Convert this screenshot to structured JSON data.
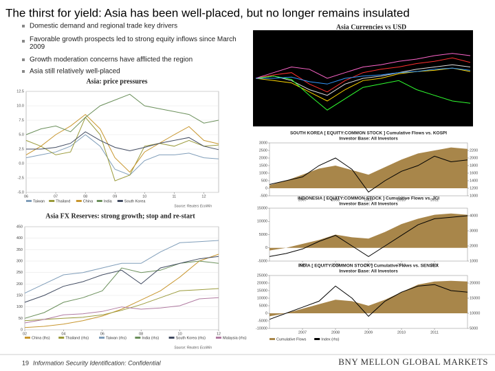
{
  "title": "The thirst for yield: Asia has been well-placed, but no longer remains insulated",
  "bullets": [
    "Domestic demand and regional trade key drivers",
    "Favorable growth prospects led to strong equity inflows since March 2009",
    "Growth moderation concerns have afflicted the region",
    "Asia still relatively well-placed"
  ],
  "chart_data": [
    {
      "type": "line",
      "title": "Asia: price pressures",
      "source": "Source: Reuters EcoWin",
      "grid": true,
      "legend": true,
      "x": [
        2006,
        2006.5,
        2007,
        2007.5,
        2008,
        2008.5,
        2009,
        2009.5,
        2010,
        2010.5,
        2011,
        2011.5,
        2012,
        2012.5
      ],
      "xlim": [
        2006,
        2012.5
      ],
      "xticks": [
        {
          "value": 2006,
          "label": "06"
        },
        {
          "value": 2007,
          "label": "07"
        },
        {
          "value": 2008,
          "label": "08"
        },
        {
          "value": 2009,
          "label": "09"
        },
        {
          "value": 2010,
          "label": "10"
        },
        {
          "value": 2011,
          "label": "11"
        },
        {
          "value": 2012,
          "label": "12"
        }
      ],
      "ylim": [
        -5,
        12.5
      ],
      "yticks": [
        {
          "value": -5,
          "label": "-5.0"
        },
        {
          "value": -2.5,
          "label": "-2.5"
        },
        {
          "value": 0,
          "label": "0.0"
        },
        {
          "value": 2.5,
          "label": "2.5"
        },
        {
          "value": 5,
          "label": "5.0"
        },
        {
          "value": 7.5,
          "label": "7.5"
        },
        {
          "value": 10,
          "label": "10.0"
        },
        {
          "value": 12.5,
          "label": "12.5"
        }
      ],
      "series": [
        {
          "name": "Taiwan",
          "color": "#7f9db9",
          "values": [
            1,
            1.5,
            2,
            3,
            5,
            3,
            -1,
            -2,
            0.5,
            1.5,
            1.5,
            1.8,
            1,
            0.8
          ]
        },
        {
          "name": "Thailand",
          "color": "#9a9a3a",
          "values": [
            4,
            3,
            1.5,
            2,
            8,
            5,
            -3,
            -2,
            3,
            3.5,
            3,
            4,
            3,
            3.2
          ]
        },
        {
          "name": "China",
          "color": "#c8962e",
          "values": [
            1.5,
            3,
            5,
            6.5,
            8.5,
            6,
            1,
            -1.5,
            2,
            3.5,
            5,
            6.4,
            4,
            3.4
          ]
        },
        {
          "name": "India",
          "color": "#6a8f5a",
          "values": [
            5,
            6,
            6.5,
            5.5,
            8,
            10,
            11,
            12,
            10,
            9.5,
            9,
            8.5,
            7,
            7.5
          ]
        },
        {
          "name": "South Korea",
          "color": "#404a60",
          "values": [
            2.5,
            2.5,
            2.8,
            3.5,
            5.5,
            4,
            2.8,
            2.2,
            2.8,
            3.5,
            4,
            4.5,
            3,
            2.4
          ]
        }
      ]
    },
    {
      "type": "line",
      "title": "Asia FX Reserves: strong growth; stop and re-start",
      "source": "Source: Reuters EcoWin",
      "grid": true,
      "legend": true,
      "x": [
        2002,
        2003,
        2004,
        2005,
        2006,
        2007,
        2008,
        2009,
        2010,
        2011,
        2012
      ],
      "xlim": [
        2002,
        2012
      ],
      "xticks": [
        {
          "value": 2002,
          "label": "02"
        },
        {
          "value": 2004,
          "label": "04"
        },
        {
          "value": 2006,
          "label": "06"
        },
        {
          "value": 2008,
          "label": "08"
        },
        {
          "value": 2010,
          "label": "10"
        },
        {
          "value": 2012,
          "label": "12"
        }
      ],
      "ylim": [
        0,
        450
      ],
      "yticks": [
        0,
        50,
        100,
        150,
        200,
        250,
        300,
        350,
        400,
        450
      ],
      "series": [
        {
          "name": "China (lhs)",
          "color": "#c8962e",
          "values": [
            10,
            15,
            25,
            40,
            60,
            90,
            130,
            170,
            230,
            300,
            330
          ]
        },
        {
          "name": "Thailand (rhs)",
          "color": "#9a9a3a",
          "values": [
            40,
            45,
            50,
            55,
            65,
            85,
            110,
            140,
            170,
            175,
            180
          ]
        },
        {
          "name": "Taiwan (rhs)",
          "color": "#7f9db9",
          "values": [
            160,
            200,
            240,
            250,
            270,
            290,
            290,
            340,
            380,
            385,
            390
          ]
        },
        {
          "name": "India (rhs)",
          "color": "#6a8f5a",
          "values": [
            50,
            75,
            120,
            140,
            170,
            270,
            250,
            260,
            290,
            300,
            290
          ]
        },
        {
          "name": "South Korea (rhs)",
          "color": "#404a60",
          "values": [
            120,
            150,
            190,
            210,
            240,
            260,
            200,
            270,
            290,
            310,
            320
          ]
        },
        {
          "name": "Malaysia (rhs)",
          "color": "#b07aa1",
          "values": [
            30,
            45,
            65,
            70,
            80,
            100,
            90,
            95,
            105,
            135,
            140
          ]
        }
      ]
    },
    {
      "type": "line",
      "title": "Asia Currencies vs USD",
      "background": "#000000",
      "x": [
        2008,
        2008.25,
        2008.5,
        2008.75,
        2009,
        2009.25,
        2009.5,
        2009.75,
        2010,
        2010.25,
        2010.5,
        2010.75,
        2011
      ],
      "xlim": [
        2008,
        2011
      ],
      "ylim": [
        0.6,
        1.4
      ],
      "series": [
        {
          "color": "#e0e0e0",
          "values": [
            1.0,
            1.02,
            0.98,
            0.9,
            0.85,
            0.95,
            1.0,
            1.02,
            1.05,
            1.08,
            1.1,
            1.12,
            1.1
          ]
        },
        {
          "color": "#ff3030",
          "values": [
            1.0,
            1.03,
            1.05,
            0.95,
            0.88,
            0.98,
            1.05,
            1.08,
            1.1,
            1.13,
            1.15,
            1.18,
            1.14
          ]
        },
        {
          "color": "#ffd700",
          "values": [
            1.0,
            0.98,
            0.96,
            0.88,
            0.8,
            0.9,
            0.98,
            1.0,
            1.04,
            1.06,
            1.07,
            1.09,
            1.06
          ]
        },
        {
          "color": "#30ff30",
          "values": [
            1.0,
            1.02,
            0.99,
            0.85,
            0.72,
            0.82,
            0.92,
            0.95,
            0.98,
            0.9,
            0.85,
            0.8,
            0.78
          ]
        },
        {
          "color": "#ff66cc",
          "values": [
            1.0,
            1.05,
            1.1,
            1.08,
            1.0,
            1.05,
            1.1,
            1.12,
            1.15,
            1.17,
            1.2,
            1.22,
            1.2
          ]
        },
        {
          "color": "#3399ff",
          "values": [
            1.0,
            1.0,
            1.01,
            0.97,
            0.95,
            1.0,
            1.02,
            1.03,
            1.05,
            1.06,
            1.08,
            1.09,
            1.07
          ]
        }
      ]
    },
    {
      "type": "area",
      "title": "SOUTH KOREA [ EQUITY:COMMON STOCK ] Cumulative Flows vs. KOSPI",
      "subtitle": "Investor Base: All Investors",
      "x": [
        2006,
        2006.5,
        2007,
        2007.5,
        2008,
        2008.5,
        2009,
        2009.5,
        2010,
        2010.5,
        2011,
        2011.5,
        2012
      ],
      "xlim": [
        2006,
        2012
      ],
      "xticks": [
        2007,
        2008,
        2009,
        2010,
        2011
      ],
      "ylim": [
        -500,
        3000
      ],
      "yticks": [
        -500,
        0,
        500,
        1000,
        1500,
        2000,
        2500,
        3000
      ],
      "y2lim": [
        1000,
        2400
      ],
      "y2ticks": [
        1000,
        1200,
        1400,
        1600,
        1800,
        2000,
        2200
      ],
      "series": [
        {
          "type": "area",
          "color": "#a8864a",
          "values": [
            200,
            500,
            900,
            1300,
            1500,
            1200,
            900,
            1400,
            1900,
            2300,
            2500,
            2700,
            2600
          ]
        },
        {
          "axis": "y2",
          "color": "#000000",
          "values": [
            1300,
            1400,
            1500,
            1800,
            2000,
            1700,
            1100,
            1400,
            1650,
            1800,
            2050,
            1900,
            1950
          ]
        }
      ]
    },
    {
      "type": "area",
      "title": "INDONESIA [ EQUITY:COMMON STOCK ] Cumulative Flows vs. JCI",
      "subtitle": "Investor Base: All Investors",
      "x": [
        2006,
        2006.5,
        2007,
        2007.5,
        2008,
        2008.5,
        2009,
        2009.5,
        2010,
        2010.5,
        2011,
        2011.5,
        2012
      ],
      "xlim": [
        2006,
        2012
      ],
      "xticks": [
        2007,
        2008,
        2009,
        2010,
        2011
      ],
      "ylim": [
        -5000,
        15000
      ],
      "yticks": [
        -5000,
        0,
        5000,
        10000,
        15000
      ],
      "y2lim": [
        1000,
        4500
      ],
      "y2ticks": [
        1000,
        2000,
        3000,
        4000
      ],
      "series": [
        {
          "type": "area",
          "color": "#a8864a",
          "values": [
            -1000,
            0,
            1500,
            3000,
            5000,
            4000,
            3500,
            6000,
            9000,
            11000,
            12500,
            13000,
            12500
          ]
        },
        {
          "axis": "y2",
          "color": "#000000",
          "values": [
            1300,
            1500,
            1800,
            2300,
            2700,
            2000,
            1300,
            2000,
            2700,
            3400,
            3800,
            3900,
            4000
          ]
        }
      ]
    },
    {
      "type": "area",
      "title": "INDIA [ EQUITY:COMMON STOCK ] Cumulative Flows vs. SENSEX",
      "subtitle": "Investor Base: All Investors",
      "legend": true,
      "x": [
        2006,
        2006.5,
        2007,
        2007.5,
        2008,
        2008.5,
        2009,
        2009.5,
        2010,
        2010.5,
        2011,
        2011.5,
        2012
      ],
      "xlim": [
        2006,
        2012
      ],
      "xticks": [
        2007,
        2008,
        2009,
        2010,
        2011
      ],
      "ylim": [
        -10000,
        25000
      ],
      "yticks": [
        -10000,
        -5000,
        0,
        5000,
        10000,
        15000,
        20000,
        25000
      ],
      "y2lim": [
        5000,
        22500
      ],
      "y2ticks": [
        5000,
        10000,
        15000,
        20000
      ],
      "series": [
        {
          "name": "Cumulative Flows",
          "type": "area",
          "color": "#a8864a",
          "values": [
            -2000,
            0,
            3000,
            6000,
            9000,
            8000,
            5000,
            9000,
            14000,
            19000,
            21000,
            21500,
            21000
          ]
        },
        {
          "name": "Index (rhs)",
          "axis": "y2",
          "color": "#000000",
          "values": [
            8000,
            10000,
            12000,
            14000,
            19000,
            15000,
            9000,
            14000,
            17000,
            19000,
            19500,
            17500,
            17000
          ]
        }
      ]
    }
  ],
  "footer": {
    "page": "19",
    "note": "Information Security Identification: Confidential",
    "brand": "BNY MELLON GLOBAL MARKETS"
  }
}
